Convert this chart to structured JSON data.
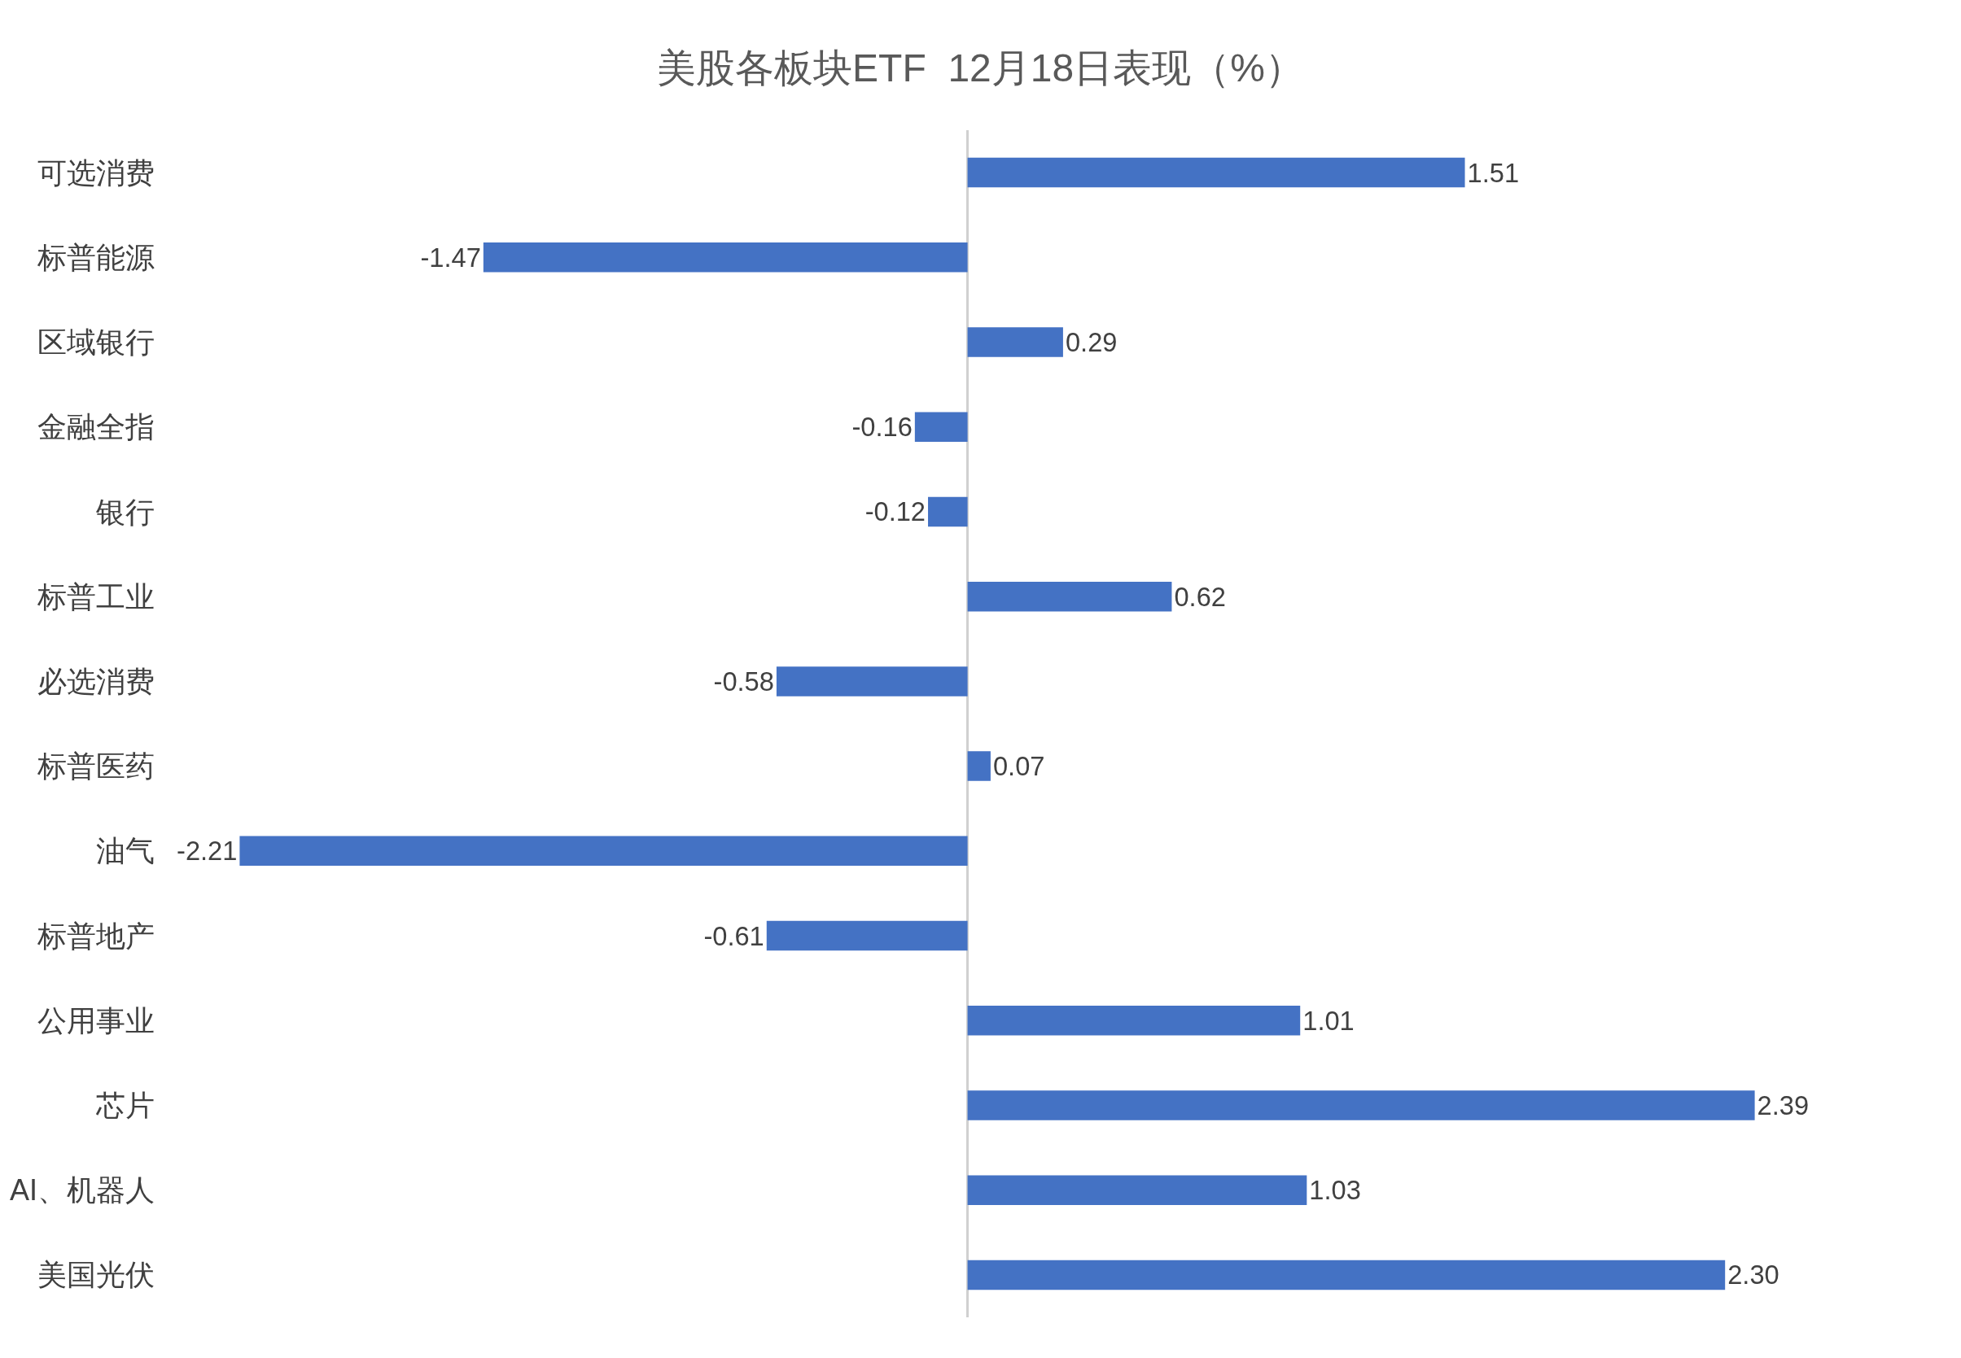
{
  "chart_data": {
    "type": "bar",
    "orientation": "horizontal",
    "title": "美股各板块ETF  12月18日表现（%）",
    "categories": [
      "可选消费",
      "标普能源",
      "区域银行",
      "金融全指",
      "银行",
      "标普工业",
      "必选消费",
      "标普医药",
      "油气",
      "标普地产",
      "公用事业",
      "芯片",
      "AI、机器人",
      "美国光伏"
    ],
    "values": [
      1.51,
      -1.47,
      0.29,
      -0.16,
      -0.12,
      0.62,
      -0.58,
      0.07,
      -2.21,
      -0.61,
      1.01,
      2.39,
      1.03,
      2.3
    ],
    "value_labels": [
      "1.51",
      "-1.47",
      "0.29",
      "-0.16",
      "-0.12",
      "0.62",
      "-0.58",
      "0.07",
      "-2.21",
      "-0.61",
      "1.01",
      "2.39",
      "1.03",
      "2.30"
    ],
    "color": "#4472c4",
    "grid": false,
    "legend": false
  }
}
